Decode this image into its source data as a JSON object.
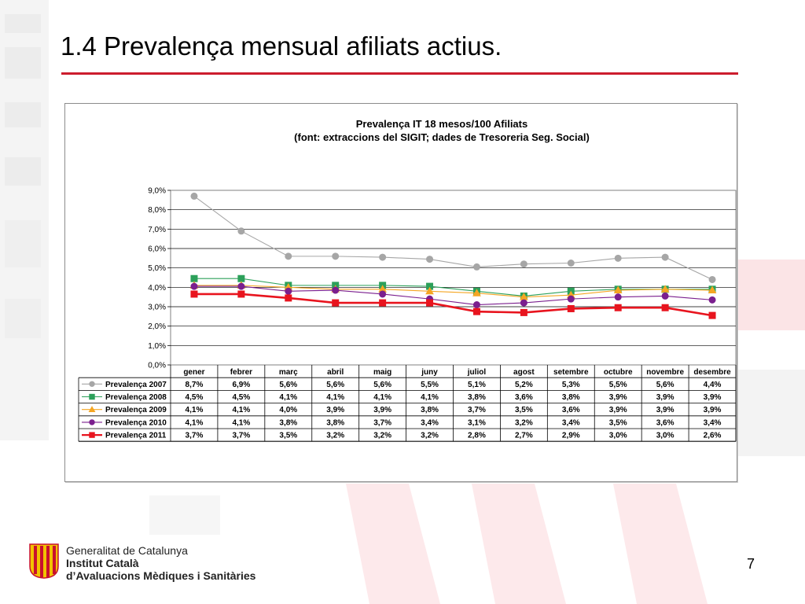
{
  "slide": {
    "title": "1.4 Prevalença mensual afiliats actius.",
    "page_number": "7",
    "accent_color": "#cc1d2d"
  },
  "footer": {
    "org_line1": "Generalitat de Catalunya",
    "org_line2": "Institut Català",
    "org_line3": "d’Avaluacions Mèdiques i Sanitàries",
    "logo_icon": "generalitat-four-bars-logo"
  },
  "chart_data": {
    "type": "line",
    "title": "Prevalença IT 18 mesos/100 Afiliats",
    "subtitle": "(font: extraccions del SIGIT; dades de Tresoreria Seg. Social)",
    "categories": [
      "gener",
      "febrer",
      "març",
      "abril",
      "maig",
      "juny",
      "juliol",
      "agost",
      "setembre",
      "octubre",
      "novembre",
      "desembre"
    ],
    "y_ticks": [
      "9,0%",
      "8,0%",
      "7,0%",
      "6,0%",
      "5,0%",
      "4,0%",
      "3,0%",
      "2,0%",
      "1,0%",
      "0,0%"
    ],
    "ylim": [
      0,
      9
    ],
    "grid": true,
    "legend": "data-table-below",
    "series": [
      {
        "name": "Prevalença 2007",
        "color": "#a6a6a6",
        "marker": "circle",
        "values": [
          8.7,
          6.9,
          5.6,
          5.6,
          5.55,
          5.45,
          5.05,
          5.2,
          5.25,
          5.5,
          5.55,
          4.4
        ],
        "labels": [
          "8,7%",
          "6,9%",
          "5,6%",
          "5,6%",
          "5,6%",
          "5,5%",
          "5,1%",
          "5,2%",
          "5,3%",
          "5,5%",
          "5,6%",
          "4,4%"
        ]
      },
      {
        "name": "Prevalença 2008",
        "color": "#2ca05a",
        "marker": "square",
        "values": [
          4.45,
          4.45,
          4.1,
          4.1,
          4.1,
          4.05,
          3.8,
          3.55,
          3.8,
          3.9,
          3.9,
          3.9
        ],
        "labels": [
          "4,5%",
          "4,5%",
          "4,1%",
          "4,1%",
          "4,1%",
          "4,1%",
          "3,8%",
          "3,6%",
          "3,8%",
          "3,9%",
          "3,9%",
          "3,9%"
        ]
      },
      {
        "name": "Prevalença 2009",
        "color": "#f5a623",
        "marker": "triangle",
        "values": [
          4.1,
          4.1,
          4.0,
          3.9,
          3.9,
          3.8,
          3.7,
          3.5,
          3.6,
          3.85,
          3.9,
          3.85
        ],
        "labels": [
          "4,1%",
          "4,1%",
          "4,0%",
          "3,9%",
          "3,9%",
          "3,8%",
          "3,7%",
          "3,5%",
          "3,6%",
          "3,9%",
          "3,9%",
          "3,9%"
        ]
      },
      {
        "name": "Prevalença 2010",
        "color": "#7b1f8e",
        "marker": "circle",
        "values": [
          4.05,
          4.05,
          3.8,
          3.85,
          3.65,
          3.4,
          3.1,
          3.2,
          3.4,
          3.5,
          3.55,
          3.35
        ],
        "labels": [
          "4,1%",
          "4,1%",
          "3,8%",
          "3,8%",
          "3,7%",
          "3,4%",
          "3,1%",
          "3,2%",
          "3,4%",
          "3,5%",
          "3,6%",
          "3,4%"
        ]
      },
      {
        "name": "Prevalença 2011",
        "color": "#e8141e",
        "marker": "square",
        "values": [
          3.65,
          3.65,
          3.45,
          3.2,
          3.2,
          3.2,
          2.75,
          2.7,
          2.9,
          2.95,
          2.95,
          2.55
        ],
        "labels": [
          "3,7%",
          "3,7%",
          "3,5%",
          "3,2%",
          "3,2%",
          "3,2%",
          "2,8%",
          "2,7%",
          "2,9%",
          "3,0%",
          "3,0%",
          "2,6%"
        ]
      }
    ]
  }
}
